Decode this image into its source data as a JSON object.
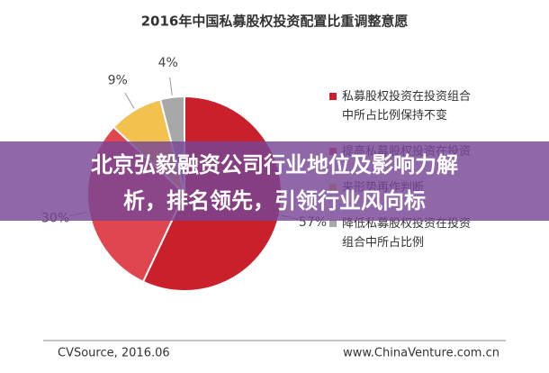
{
  "chart_data": {
    "type": "pie",
    "title": "2016年中国私募股权投资配置比重调整意愿",
    "series": [
      {
        "name": "私募股权投资在投资组合中所占比例保持不变",
        "color": "#c9202b",
        "values": [
          57
        ],
        "value_labels": [
          "57%"
        ]
      },
      {
        "name": "提高私募股权投资在投资",
        "color": "#e04650",
        "values": [
          30
        ],
        "value_labels": [
          "30%"
        ]
      },
      {
        "name": "来形势再作判断",
        "color": "#f2c14e",
        "values": [
          9
        ],
        "value_labels": [
          "9%"
        ]
      },
      {
        "name": "降低私募股权投资在投资组合中所占比例",
        "color": "#a8a8a8",
        "values": [
          4
        ],
        "value_labels": [
          "4%"
        ]
      }
    ],
    "source_left": "CVSource, 2016.06",
    "source_right": "www.ChinaVenture.com.cn"
  },
  "banner": {
    "lines": [
      "北京弘毅融资公司行业地位及影响力解",
      "析，排名领先，引领行业风向标"
    ]
  }
}
